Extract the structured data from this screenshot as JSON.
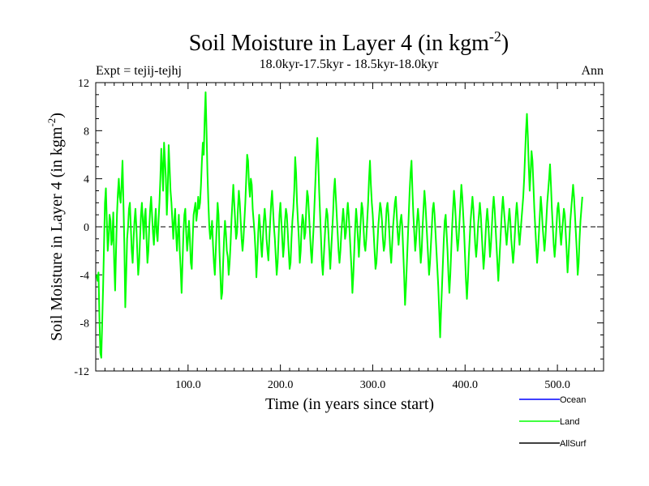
{
  "chart_data": {
    "type": "line",
    "title_main": "Soil Moisture in Layer 4 (in kgm",
    "title_exp": "-2",
    "title_close": ")",
    "subtitle": "18.0kyr-17.5kyr - 18.5kyr-18.0kyr",
    "expt_label": "Expt = tejij-tejhj",
    "period_label": "Ann",
    "xlabel": "Time (in years since start)",
    "ylabel_main": "Soil Moisture in Layer 4 (in kgm",
    "ylabel_exp": "-2",
    "ylabel_close": ")",
    "xlim": [
      0,
      550
    ],
    "ylim": [
      -12,
      12
    ],
    "x_ticks": [
      {
        "value": 100,
        "label": "100.0"
      },
      {
        "value": 200,
        "label": "200.0"
      },
      {
        "value": 300,
        "label": "300.0"
      },
      {
        "value": 400,
        "label": "400.0"
      },
      {
        "value": 500,
        "label": "500.0"
      }
    ],
    "y_ticks": [
      {
        "value": -12,
        "label": "-12"
      },
      {
        "value": -8,
        "label": "-8"
      },
      {
        "value": -4,
        "label": "-4"
      },
      {
        "value": 0,
        "label": "0"
      },
      {
        "value": 4,
        "label": "4"
      },
      {
        "value": 8,
        "label": "8"
      },
      {
        "value": 12,
        "label": "12"
      }
    ],
    "zero_line": 0,
    "legend": [
      {
        "name": "Ocean",
        "color": "#0000ff"
      },
      {
        "name": "Land",
        "color": "#00ff00"
      },
      {
        "name": "AllSurf",
        "color": "#000000"
      }
    ],
    "series": [
      {
        "name": "Land",
        "color": "#00ff00",
        "x_start": 1,
        "x_step": 1,
        "values": [
          -4.0,
          -4.5,
          -3.8,
          -7.5,
          -10.5,
          -10.9,
          -8.0,
          -5.0,
          -1.5,
          2.0,
          3.2,
          0.5,
          -2.0,
          -1.0,
          1.0,
          0.5,
          -1.5,
          -1.0,
          1.2,
          -3.0,
          -5.3,
          -2.0,
          1.0,
          2.8,
          4.0,
          2.5,
          2.0,
          3.5,
          5.5,
          2.0,
          -1.5,
          -6.7,
          -4.0,
          -1.0,
          0.0,
          1.5,
          2.0,
          0.0,
          -2.0,
          -3.0,
          -1.0,
          0.5,
          1.5,
          0.0,
          -2.0,
          -4.0,
          -3.0,
          -1.0,
          1.0,
          2.0,
          0.5,
          -1.0,
          0.8,
          1.5,
          -1.0,
          -3.0,
          -2.0,
          0.0,
          1.5,
          2.5,
          1.0,
          -0.5,
          -1.5,
          0.2,
          1.5,
          -0.5,
          -1.2,
          0.5,
          2.0,
          4.0,
          6.5,
          5.0,
          3.0,
          7.0,
          5.5,
          4.0,
          1.0,
          3.0,
          6.8,
          5.0,
          3.0,
          2.0,
          0.5,
          -1.0,
          0.5,
          1.5,
          -0.5,
          -2.0,
          -0.5,
          1.0,
          -2.0,
          -3.5,
          -5.5,
          -3.0,
          -0.5,
          1.0,
          1.5,
          -0.5,
          -2.0,
          -1.0,
          0.5,
          -1.0,
          -3.0,
          -3.5,
          -1.0,
          1.0,
          1.5,
          2.0,
          0.5,
          1.2,
          2.5,
          1.5,
          2.0,
          3.5,
          5.5,
          7.0,
          6.0,
          9.0,
          11.2,
          8.0,
          4.5,
          2.0,
          0.0,
          -1.0,
          -0.5,
          0.5,
          -1.5,
          -3.0,
          -4.0,
          -2.0,
          0.0,
          2.0,
          1.0,
          -2.0,
          -4.0,
          -6.0,
          -5.5,
          -3.0,
          -1.0,
          0.5,
          -0.5,
          -2.0,
          -2.5,
          -4.0,
          -3.0,
          -1.5,
          0.5,
          2.0,
          3.5,
          2.0,
          0.5,
          -1.0,
          -0.5,
          1.5,
          3.0,
          2.0,
          0.5,
          -1.0,
          -2.0,
          -1.0,
          0.5,
          2.0,
          4.0,
          6.0,
          5.5,
          3.5,
          2.5,
          4.0,
          3.5,
          1.5,
          0.5,
          -0.5,
          -2.0,
          -4.2,
          -2.5,
          -0.5,
          1.0,
          0.0,
          -1.5,
          -2.5,
          -1.0,
          0.5,
          1.5,
          0.5,
          -1.0,
          -2.0,
          -2.8,
          -1.0,
          0.5,
          2.0,
          3.0,
          1.5,
          0.0,
          -1.0,
          -2.5,
          -4.0,
          -3.0,
          -1.0,
          1.0,
          2.0,
          0.5,
          -1.0,
          -2.5,
          -1.5,
          0.5,
          1.5,
          1.0,
          -0.5,
          -2.0,
          -3.5,
          -3.0,
          -1.0,
          0.5,
          1.5,
          3.0,
          5.8,
          4.5,
          2.0,
          0.5,
          -1.0,
          -3.0,
          -2.0,
          0.0,
          1.0,
          0.5,
          -1.0,
          -0.5,
          1.5,
          3.0,
          2.5,
          1.0,
          -0.5,
          -2.0,
          -3.0,
          -1.5,
          0.0,
          2.0,
          4.0,
          6.0,
          7.4,
          5.5,
          3.0,
          1.0,
          -1.0,
          -3.0,
          -4.0,
          -2.5,
          -1.0,
          0.5,
          1.5,
          1.0,
          -0.5,
          -2.0,
          -3.5,
          -2.0,
          -0.5,
          1.0,
          3.0,
          4.0,
          2.5,
          1.0,
          -0.5,
          -2.0,
          -3.0,
          -2.0,
          -0.5,
          0.5,
          1.5,
          0.5,
          -1.0,
          -0.5,
          1.0,
          2.0,
          1.0,
          -0.5,
          -2.0,
          -3.5,
          -5.5,
          -4.0,
          -2.0,
          0.0,
          1.5,
          0.5,
          -1.0,
          -2.5,
          -1.0,
          0.5,
          2.0,
          1.5,
          0.0,
          -1.5,
          -2.0,
          -1.0,
          0.5,
          2.0,
          4.0,
          5.5,
          3.5,
          2.0,
          1.0,
          -0.5,
          -2.0,
          -3.5,
          -3.0,
          -1.5,
          0.0,
          1.0,
          2.0,
          1.5,
          0.5,
          -1.0,
          -2.0,
          -1.5,
          0.0,
          1.5,
          2.0,
          1.0,
          -0.5,
          -2.0,
          -3.0,
          -1.5,
          0.0,
          1.0,
          2.0,
          2.5,
          1.0,
          -0.5,
          -1.5,
          -0.5,
          0.5,
          1.0,
          0.0,
          -2.0,
          -4.0,
          -6.5,
          -5.0,
          -3.0,
          -1.0,
          1.0,
          3.0,
          4.5,
          5.5,
          3.0,
          1.0,
          -0.5,
          -2.0,
          -1.0,
          0.5,
          1.5,
          0.5,
          -1.5,
          -3.0,
          -2.0,
          0.0,
          1.5,
          3.0,
          2.0,
          0.5,
          -1.0,
          -2.5,
          -4.0,
          -3.0,
          -1.5,
          0.0,
          1.5,
          2.0,
          1.0,
          -0.5,
          -2.0,
          -3.5,
          -5.0,
          -7.0,
          -9.2,
          -7.0,
          -5.0,
          -3.0,
          -1.0,
          0.5,
          1.0,
          -0.5,
          -2.0,
          -4.0,
          -5.5,
          -4.0,
          -2.0,
          0.0,
          1.5,
          3.0,
          2.0,
          0.5,
          -1.0,
          -2.0,
          -1.0,
          0.5,
          2.0,
          3.5,
          2.5,
          1.0,
          -0.5,
          -2.5,
          -4.5,
          -6.0,
          -4.5,
          -2.5,
          -1.0,
          0.5,
          1.5,
          2.5,
          1.5,
          0.0,
          -1.5,
          -2.5,
          -1.5,
          0.0,
          1.0,
          2.0,
          1.0,
          -0.5,
          -2.0,
          -3.5,
          -2.5,
          -1.0,
          0.5,
          1.5,
          0.5,
          -1.0,
          -2.5,
          -1.5,
          0.0,
          1.5,
          2.5,
          1.5,
          0.0,
          -1.5,
          -3.0,
          -4.5,
          -3.0,
          -1.5,
          0.0,
          1.5,
          2.5,
          1.5,
          0.5,
          -0.5,
          -1.5,
          -0.5,
          0.5,
          1.5,
          0.5,
          -1.0,
          -2.0,
          -3.0,
          -2.0,
          -0.5,
          1.0,
          2.0,
          1.0,
          -0.5,
          -1.5,
          -0.5,
          0.5,
          1.5,
          2.5,
          4.0,
          6.0,
          8.0,
          9.4,
          7.5,
          5.0,
          3.0,
          4.5,
          6.3,
          5.5,
          3.5,
          1.5,
          0.0,
          -1.5,
          -3.0,
          -2.0,
          -0.5,
          1.0,
          2.5,
          1.5,
          0.0,
          -1.0,
          -2.0,
          -1.0,
          0.5,
          2.0,
          3.0,
          4.0,
          5.2,
          3.5,
          1.5,
          0.0,
          -1.5,
          -2.5,
          -1.5,
          0.0,
          1.5,
          2.0,
          1.0,
          -0.5,
          -1.5,
          -0.5,
          0.5,
          1.5,
          1.0,
          -0.5,
          -2.0,
          -3.8,
          -2.5,
          -1.0,
          0.5,
          1.5,
          2.5,
          3.5,
          2.5,
          1.0,
          -0.5,
          -2.0,
          -4.0,
          -3.0,
          -1.0,
          0.5,
          1.5,
          2.5
        ]
      }
    ]
  }
}
